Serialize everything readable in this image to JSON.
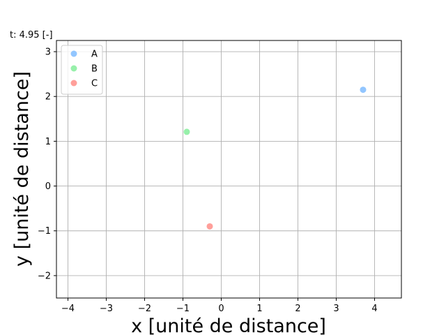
{
  "chart_data": {
    "type": "scatter",
    "time_label": "t: 4.95 [-]",
    "xlabel": "x [unité de distance]",
    "ylabel": "y [unité de distance]",
    "xlim": [
      -4.3,
      4.7
    ],
    "ylim": [
      -2.5,
      3.25
    ],
    "x_ticks": [
      -4,
      -3,
      -2,
      -1,
      0,
      1,
      2,
      3,
      4
    ],
    "x_tick_labels": [
      "−4",
      "−3",
      "−2",
      "−1",
      "0",
      "1",
      "2",
      "3",
      "4"
    ],
    "y_ticks": [
      -2,
      -1,
      0,
      1,
      2,
      3
    ],
    "y_tick_labels": [
      "−2",
      "−1",
      "0",
      "1",
      "2",
      "3"
    ],
    "grid": true,
    "legend_position": "top-left",
    "series": [
      {
        "name": "A",
        "color": "#92c6ff",
        "points": [
          {
            "x": 3.7,
            "y": 2.15
          }
        ]
      },
      {
        "name": "B",
        "color": "#97f0aa",
        "points": [
          {
            "x": -0.9,
            "y": 1.21
          }
        ]
      },
      {
        "name": "C",
        "color": "#ff9f9a",
        "points": [
          {
            "x": -0.3,
            "y": -0.9
          }
        ]
      }
    ]
  }
}
